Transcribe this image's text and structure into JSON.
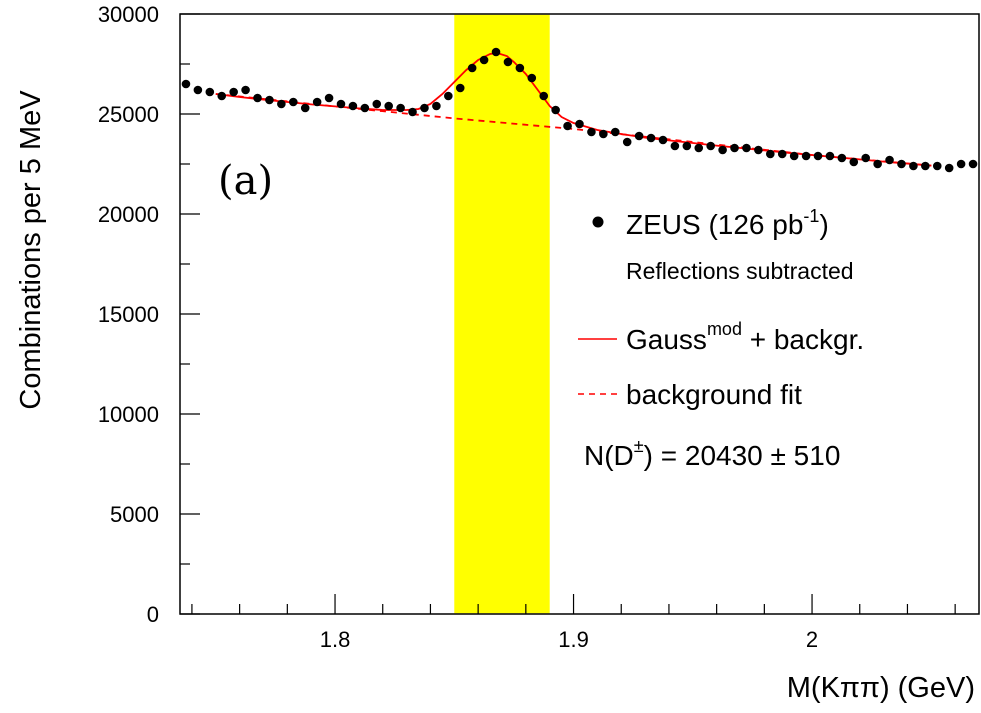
{
  "chart_data": {
    "type": "scatter",
    "xlabel": "M(Kππ)  (GeV)",
    "ylabel": "Combinations per 5 MeV",
    "xlim": [
      1.735,
      2.07
    ],
    "ylim": [
      0,
      30000
    ],
    "xticks": [
      {
        "value": 1.8,
        "label": "1.8"
      },
      {
        "value": 1.9,
        "label": "1.9"
      },
      {
        "value": 2.0,
        "label": "2"
      }
    ],
    "yticks": [
      {
        "value": 0,
        "label": "0"
      },
      {
        "value": 5000,
        "label": "5000"
      },
      {
        "value": 10000,
        "label": "10000"
      },
      {
        "value": 15000,
        "label": "15000"
      },
      {
        "value": 20000,
        "label": "20000"
      },
      {
        "value": 25000,
        "label": "25000"
      },
      {
        "value": 30000,
        "label": "30000"
      }
    ],
    "panel_label": "(a)",
    "signal_band": {
      "x0": 1.85,
      "x1": 1.89,
      "color": "#ffff00"
    },
    "series": [
      {
        "name": "ZEUS (126 pb-1)",
        "style": "points",
        "color": "#000000",
        "x": [
          1.7375,
          1.7425,
          1.7475,
          1.7525,
          1.7575,
          1.7625,
          1.7675,
          1.7725,
          1.7775,
          1.7825,
          1.7875,
          1.7925,
          1.7975,
          1.8025,
          1.8075,
          1.8125,
          1.8175,
          1.8225,
          1.8275,
          1.8325,
          1.8375,
          1.8425,
          1.8475,
          1.8525,
          1.8575,
          1.8625,
          1.8675,
          1.8725,
          1.8775,
          1.8825,
          1.8875,
          1.8925,
          1.8975,
          1.9025,
          1.9075,
          1.9125,
          1.9175,
          1.9225,
          1.9275,
          1.9325,
          1.9375,
          1.9425,
          1.9475,
          1.9525,
          1.9575,
          1.9625,
          1.9675,
          1.9725,
          1.9775,
          1.9825,
          1.9875,
          1.9925,
          1.9975,
          2.0025,
          2.0075,
          2.0125,
          2.0175,
          2.0225,
          2.0275,
          2.0325,
          2.0375,
          2.0425,
          2.0475,
          2.0525,
          2.0575,
          2.0625,
          2.0675
        ],
        "y": [
          26500,
          26200,
          26100,
          25900,
          26100,
          26200,
          25800,
          25700,
          25500,
          25600,
          25300,
          25600,
          25800,
          25500,
          25400,
          25300,
          25500,
          25400,
          25300,
          25100,
          25300,
          25400,
          25900,
          26300,
          27300,
          27700,
          28100,
          27600,
          27300,
          26800,
          25900,
          25200,
          24400,
          24500,
          24100,
          24000,
          24100,
          23600,
          23900,
          23800,
          23700,
          23400,
          23400,
          23300,
          23400,
          23200,
          23300,
          23300,
          23200,
          23000,
          23000,
          22900,
          22900,
          22900,
          22900,
          22800,
          22600,
          22800,
          22500,
          22700,
          22500,
          22400,
          22400,
          22400,
          22300,
          22500,
          22500
        ]
      },
      {
        "name": "Gauss^mod + backgr.",
        "style": "solid-line",
        "color": "#ff0000",
        "x": [
          1.75,
          1.76,
          1.77,
          1.78,
          1.79,
          1.8,
          1.81,
          1.82,
          1.83,
          1.835,
          1.84,
          1.845,
          1.85,
          1.855,
          1.86,
          1.865,
          1.868,
          1.872,
          1.875,
          1.88,
          1.885,
          1.89,
          1.895,
          1.9,
          1.91,
          1.92,
          1.93,
          1.94,
          1.95,
          1.96,
          1.97,
          1.98,
          1.99,
          2.0,
          2.01,
          2.02,
          2.03,
          2.04,
          2.05
        ],
        "y": [
          26000,
          25850,
          25720,
          25600,
          25480,
          25380,
          25280,
          25200,
          25200,
          25250,
          25500,
          26000,
          26600,
          27200,
          27700,
          28000,
          28050,
          27900,
          27600,
          27000,
          26200,
          25400,
          24850,
          24550,
          24200,
          24000,
          23820,
          23680,
          23550,
          23420,
          23300,
          23180,
          23060,
          22950,
          22840,
          22730,
          22620,
          22520,
          22420
        ]
      },
      {
        "name": "background fit",
        "style": "dashed-line",
        "color": "#ff0000",
        "x": [
          1.75,
          1.8,
          1.85,
          1.9,
          1.95,
          2.0,
          2.05
        ],
        "y": [
          26000,
          25380,
          24780,
          24250,
          23600,
          22950,
          22420
        ]
      }
    ],
    "legend": {
      "placement": "right",
      "entries": [
        {
          "marker": "point",
          "label": "ZEUS (126 pb",
          "sup": "-1",
          "label_end": ")"
        },
        {
          "marker": "none",
          "label": "Reflections subtracted"
        },
        {
          "marker": "solid",
          "label": "Gauss",
          "sup": "mod",
          "label_end": " + backgr."
        },
        {
          "marker": "dashed",
          "label": "background fit"
        }
      ],
      "result": {
        "prefix": "N(D",
        "sup": "±",
        "suffix": ") = 20430 ± 510"
      }
    }
  }
}
